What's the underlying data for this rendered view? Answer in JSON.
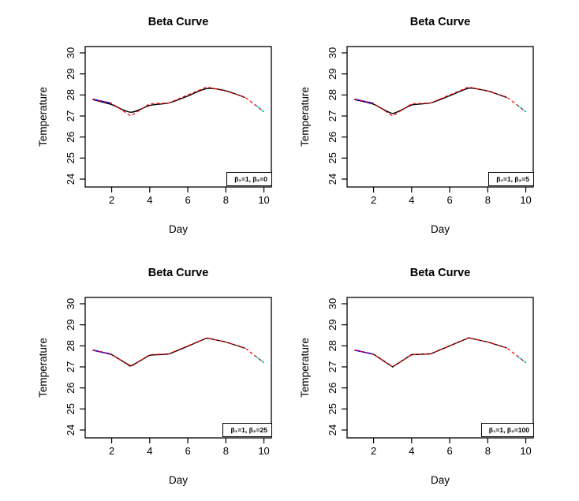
{
  "figure": {
    "background": "#ffffff"
  },
  "colors": {
    "data_line": "#ff0000",
    "fit_line": "#000000",
    "initial_segment": "#0000ff",
    "forecast_segment": "#00ffff",
    "axis": "#000000"
  },
  "chart_data": [
    {
      "type": "line",
      "title": "Beta Curve",
      "xlabel": "Day",
      "ylabel": "Temperature",
      "x_ticks": [
        2,
        4,
        6,
        8,
        10
      ],
      "y_ticks": [
        24,
        25,
        26,
        27,
        28,
        29,
        30
      ],
      "xlim": [
        0.6,
        10.4
      ],
      "ylim": [
        23.6,
        30.3
      ],
      "grid": false,
      "legend": {
        "label": "β₁=1, β₂=0",
        "position": "bottomright"
      },
      "series": [
        {
          "name": "beta-curve-fit",
          "color": "#000000",
          "dash": false,
          "width": 1.4,
          "smooth": 0.9,
          "x": [
            1,
            2,
            3,
            4,
            5,
            6,
            7,
            8,
            9
          ],
          "y": [
            27.78,
            27.54,
            27.18,
            27.5,
            27.62,
            27.95,
            28.3,
            28.2,
            27.88
          ]
        },
        {
          "name": "initial-segment",
          "color": "#0000ff",
          "dash": false,
          "width": 1.6,
          "smooth": 0,
          "x": [
            1,
            2
          ],
          "y": [
            27.8,
            27.6
          ]
        },
        {
          "name": "forecast-tip",
          "color": "#00ffff",
          "dash": false,
          "width": 1.6,
          "smooth": 0,
          "x": [
            9.5,
            10
          ],
          "y": [
            27.55,
            27.2
          ]
        },
        {
          "name": "observed-data",
          "color": "#ff0000",
          "dash": true,
          "width": 1.2,
          "smooth": 0,
          "x": [
            1,
            2,
            3,
            4,
            5,
            6,
            7,
            8,
            9,
            10
          ],
          "y": [
            27.8,
            27.6,
            27.0,
            27.58,
            27.62,
            28.0,
            28.38,
            28.18,
            27.9,
            27.2
          ]
        }
      ]
    },
    {
      "type": "line",
      "title": "Beta Curve",
      "xlabel": "Day",
      "ylabel": "Temperature",
      "x_ticks": [
        2,
        4,
        6,
        8,
        10
      ],
      "y_ticks": [
        24,
        25,
        26,
        27,
        28,
        29,
        30
      ],
      "xlim": [
        0.6,
        10.4
      ],
      "ylim": [
        23.6,
        30.3
      ],
      "grid": false,
      "legend": {
        "label": "β₁=1, β₂=5",
        "position": "bottomright"
      },
      "series": [
        {
          "name": "beta-curve-fit",
          "color": "#000000",
          "dash": false,
          "width": 1.4,
          "smooth": 0.55,
          "x": [
            1,
            2,
            3,
            4,
            5,
            6,
            7,
            8,
            9
          ],
          "y": [
            27.78,
            27.56,
            27.12,
            27.52,
            27.62,
            27.96,
            28.32,
            28.19,
            27.88
          ]
        },
        {
          "name": "initial-segment",
          "color": "#0000ff",
          "dash": false,
          "width": 1.6,
          "smooth": 0,
          "x": [
            1,
            2
          ],
          "y": [
            27.8,
            27.6
          ]
        },
        {
          "name": "forecast-tip",
          "color": "#00ffff",
          "dash": false,
          "width": 1.6,
          "smooth": 0,
          "x": [
            9.5,
            10
          ],
          "y": [
            27.55,
            27.2
          ]
        },
        {
          "name": "observed-data",
          "color": "#ff0000",
          "dash": true,
          "width": 1.2,
          "smooth": 0,
          "x": [
            1,
            2,
            3,
            4,
            5,
            6,
            7,
            8,
            9,
            10
          ],
          "y": [
            27.8,
            27.6,
            27.0,
            27.58,
            27.62,
            28.0,
            28.38,
            28.18,
            27.9,
            27.2
          ]
        }
      ]
    },
    {
      "type": "line",
      "title": "Beta Curve",
      "xlabel": "Day",
      "ylabel": "Temperature",
      "x_ticks": [
        2,
        4,
        6,
        8,
        10
      ],
      "y_ticks": [
        24,
        25,
        26,
        27,
        28,
        29,
        30
      ],
      "xlim": [
        0.6,
        10.4
      ],
      "ylim": [
        23.6,
        30.3
      ],
      "grid": false,
      "legend": {
        "label": "β₁=1, β₂=25",
        "position": "bottomright"
      },
      "series": [
        {
          "name": "beta-curve-fit",
          "color": "#000000",
          "dash": false,
          "width": 1.4,
          "smooth": 0.2,
          "x": [
            1,
            2,
            3,
            4,
            5,
            6,
            7,
            8,
            9
          ],
          "y": [
            27.8,
            27.58,
            27.05,
            27.55,
            27.61,
            27.98,
            28.36,
            28.18,
            27.89
          ]
        },
        {
          "name": "initial-segment",
          "color": "#0000ff",
          "dash": false,
          "width": 1.6,
          "smooth": 0,
          "x": [
            1,
            2
          ],
          "y": [
            27.8,
            27.6
          ]
        },
        {
          "name": "forecast-tip",
          "color": "#00ffff",
          "dash": false,
          "width": 1.6,
          "smooth": 0,
          "x": [
            9.5,
            10
          ],
          "y": [
            27.55,
            27.2
          ]
        },
        {
          "name": "observed-data",
          "color": "#ff0000",
          "dash": true,
          "width": 1.2,
          "smooth": 0,
          "x": [
            1,
            2,
            3,
            4,
            5,
            6,
            7,
            8,
            9,
            10
          ],
          "y": [
            27.8,
            27.6,
            27.0,
            27.58,
            27.62,
            28.0,
            28.38,
            28.18,
            27.9,
            27.2
          ]
        }
      ]
    },
    {
      "type": "line",
      "title": "Beta Curve",
      "xlabel": "Day",
      "ylabel": "Temperature",
      "x_ticks": [
        2,
        4,
        6,
        8,
        10
      ],
      "y_ticks": [
        24,
        25,
        26,
        27,
        28,
        29,
        30
      ],
      "xlim": [
        0.6,
        10.4
      ],
      "ylim": [
        23.6,
        30.3
      ],
      "grid": false,
      "legend": {
        "label": "β₁=1, β₂=100",
        "position": "bottomright"
      },
      "series": [
        {
          "name": "beta-curve-fit",
          "color": "#000000",
          "dash": false,
          "width": 1.4,
          "smooth": 0,
          "x": [
            1,
            2,
            3,
            4,
            5,
            6,
            7,
            8,
            9
          ],
          "y": [
            27.8,
            27.6,
            27.0,
            27.58,
            27.62,
            28.0,
            28.38,
            28.18,
            27.9
          ]
        },
        {
          "name": "initial-segment",
          "color": "#0000ff",
          "dash": false,
          "width": 1.6,
          "smooth": 0,
          "x": [
            1,
            2
          ],
          "y": [
            27.8,
            27.6
          ]
        },
        {
          "name": "forecast-tip",
          "color": "#00ffff",
          "dash": false,
          "width": 1.6,
          "smooth": 0,
          "x": [
            9.5,
            10
          ],
          "y": [
            27.55,
            27.2
          ]
        },
        {
          "name": "observed-data",
          "color": "#ff0000",
          "dash": true,
          "width": 1.2,
          "smooth": 0,
          "x": [
            1,
            2,
            3,
            4,
            5,
            6,
            7,
            8,
            9,
            10
          ],
          "y": [
            27.8,
            27.6,
            27.0,
            27.58,
            27.62,
            28.0,
            28.38,
            28.18,
            27.9,
            27.2
          ]
        }
      ]
    }
  ]
}
